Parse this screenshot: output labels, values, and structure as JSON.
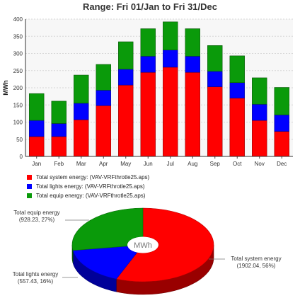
{
  "title": "Range: Fri 01/Jan to Fri 31/Dec",
  "colors": {
    "system": "#ff0000",
    "lights": "#0000ff",
    "equip": "#0a9a0a"
  },
  "chart_data": [
    {
      "type": "bar",
      "stacked": true,
      "categories": [
        "Jan",
        "Feb",
        "Mar",
        "Apr",
        "May",
        "Jun",
        "Jul",
        "Aug",
        "Sep",
        "Oct",
        "Nov",
        "Dec"
      ],
      "ylabel": "MWh",
      "ylim": [
        0,
        400
      ],
      "yticks": [
        0,
        50,
        100,
        150,
        200,
        250,
        300,
        350,
        400
      ],
      "grid": true,
      "series": [
        {
          "name": "Total system energy:  (VAV-VRFthrotle25.aps)",
          "color": "#ff0000",
          "values": [
            58,
            58,
            107,
            148,
            208,
            245,
            260,
            245,
            203,
            170,
            105,
            73
          ]
        },
        {
          "name": "Total lights energy:  (VAV-VRFthrotle25.aps)",
          "color": "#0000ff",
          "values": [
            47,
            38,
            48,
            45,
            46,
            47,
            50,
            47,
            45,
            45,
            47,
            48
          ]
        },
        {
          "name": "Total equip energy:  (VAV-VRFthrotle25.aps)",
          "color": "#0a9a0a",
          "values": [
            78,
            65,
            82,
            75,
            80,
            80,
            82,
            80,
            75,
            78,
            77,
            80
          ]
        }
      ]
    },
    {
      "type": "pie",
      "center_label": "MWh",
      "slices": [
        {
          "name": "Total system energy",
          "label_line1": "Total system energy",
          "label_line2": "(1902.04, 56%)",
          "value": 1902.04,
          "percent": 56,
          "color": "#ff0000"
        },
        {
          "name": "Total lights energy",
          "label_line1": "Total lights energy",
          "label_line2": "(557.43, 16%)",
          "value": 557.43,
          "percent": 16,
          "color": "#0000ff"
        },
        {
          "name": "Total equip energy",
          "label_line1": "Total equip energy",
          "label_line2": "(928.23, 27%)",
          "value": 928.23,
          "percent": 27,
          "color": "#0a9a0a"
        }
      ]
    }
  ]
}
